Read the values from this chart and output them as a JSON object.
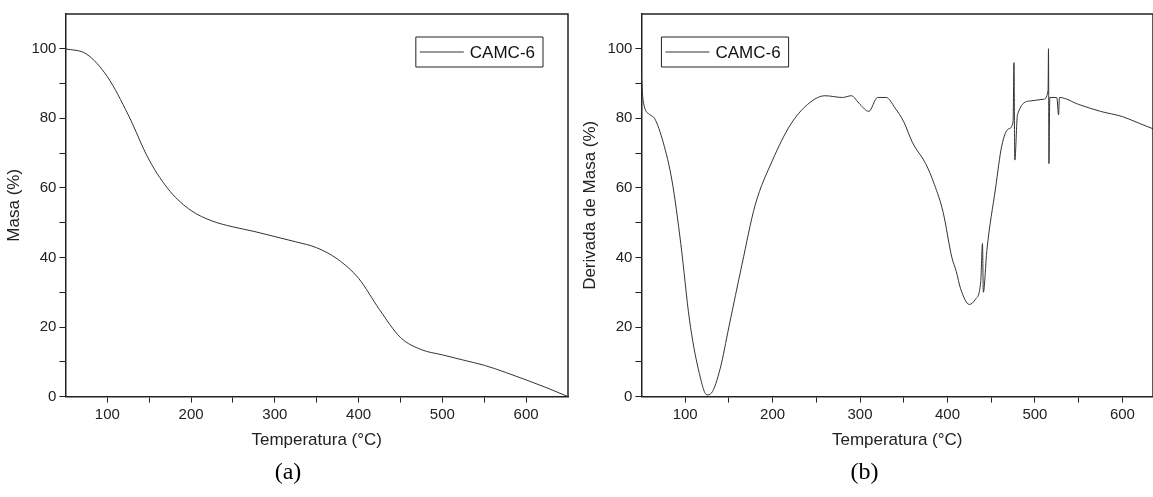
{
  "chart_data": [
    {
      "type": "line",
      "xlabel": "Temperatura (°C)",
      "ylabel": "Masa (%)",
      "annotations": [
        "(a)"
      ],
      "legend": "top right",
      "grid": false,
      "marker": "none",
      "line_style": "solid",
      "xlim": [
        50,
        650
      ],
      "ylim": [
        0,
        110
      ],
      "xticks": [
        100,
        {
          "value": 150,
          "label": null
        },
        200,
        {
          "value": 250,
          "label": null
        },
        300,
        {
          "value": 350,
          "label": null
        },
        400,
        {
          "value": 450,
          "label": null
        },
        500,
        {
          "value": 550,
          "label": null
        },
        600
      ],
      "yticks": [
        0,
        {
          "value": 10,
          "label": null
        },
        20,
        {
          "value": 30,
          "label": null
        },
        40,
        {
          "value": 50,
          "label": null
        },
        60,
        {
          "value": 70,
          "label": null
        },
        80,
        {
          "value": 90,
          "label": null
        },
        100
      ],
      "series": [
        {
          "name": "CAMC-6",
          "color": "#333333",
          "x": [
            50,
            75,
            100,
            125,
            150,
            175,
            200,
            225,
            250,
            275,
            300,
            325,
            350,
            375,
            400,
            425,
            450,
            475,
            500,
            525,
            550,
            575,
            600,
            625,
            650
          ],
          "values": [
            100,
            98.5,
            92,
            81,
            68,
            59,
            53.5,
            50.5,
            48.8,
            47.5,
            46,
            44.5,
            42.8,
            39.5,
            34,
            25,
            17,
            13.5,
            12,
            10.5,
            9,
            7,
            4.8,
            2.5,
            0
          ]
        }
      ]
    },
    {
      "type": "line",
      "xlabel": "Temperatura (°C)",
      "ylabel": "Derivada de Masa (%)",
      "annotations": [
        "(b)"
      ],
      "legend": "top left",
      "grid": false,
      "marker": "none",
      "line_style": "solid",
      "xlim": [
        50,
        635
      ],
      "ylim": [
        0,
        110
      ],
      "xticks": [
        100,
        {
          "value": 150,
          "label": null
        },
        200,
        {
          "value": 250,
          "label": null
        },
        300,
        {
          "value": 350,
          "label": null
        },
        400,
        {
          "value": 450,
          "label": null
        },
        500,
        {
          "value": 550,
          "label": null
        },
        600
      ],
      "yticks": [
        0,
        {
          "value": 10,
          "label": null
        },
        20,
        {
          "value": 30,
          "label": null
        },
        40,
        {
          "value": 50,
          "label": null
        },
        60,
        {
          "value": 70,
          "label": null
        },
        80,
        {
          "value": 90,
          "label": null
        },
        100
      ],
      "series": [
        {
          "name": "CAMC-6",
          "color": "#333333",
          "x": [
            50,
            52,
            60,
            65,
            75,
            85,
            95,
            105,
            115,
            125,
            130,
            140,
            150,
            165,
            180,
            200,
            220,
            240,
            260,
            280,
            290,
            300,
            310,
            320,
            330,
            340,
            350,
            360,
            375,
            385,
            395,
            405,
            410,
            415,
            425,
            432,
            438,
            440,
            441,
            445,
            455,
            462,
            470,
            475,
            476,
            477,
            480,
            495,
            510,
            515,
            515.5,
            516,
            517,
            525,
            527,
            528,
            550,
            575,
            600,
            620,
            635
          ],
          "values": [
            92,
            85,
            81,
            80,
            73,
            62,
            44,
            22,
            8,
            0.5,
            1,
            8,
            20,
            38,
            55,
            68,
            78,
            84,
            86.5,
            86,
            86.5,
            84,
            82,
            86,
            86,
            83,
            79,
            73,
            67,
            61,
            53,
            40,
            36,
            31,
            26.5,
            28,
            33,
            44,
            30,
            42,
            60,
            72,
            77,
            79,
            96,
            68,
            81,
            85,
            85.5,
            88,
            100,
            67,
            86,
            86,
            81,
            86,
            84,
            82,
            80.5,
            78.5,
            77
          ]
        }
      ]
    }
  ]
}
